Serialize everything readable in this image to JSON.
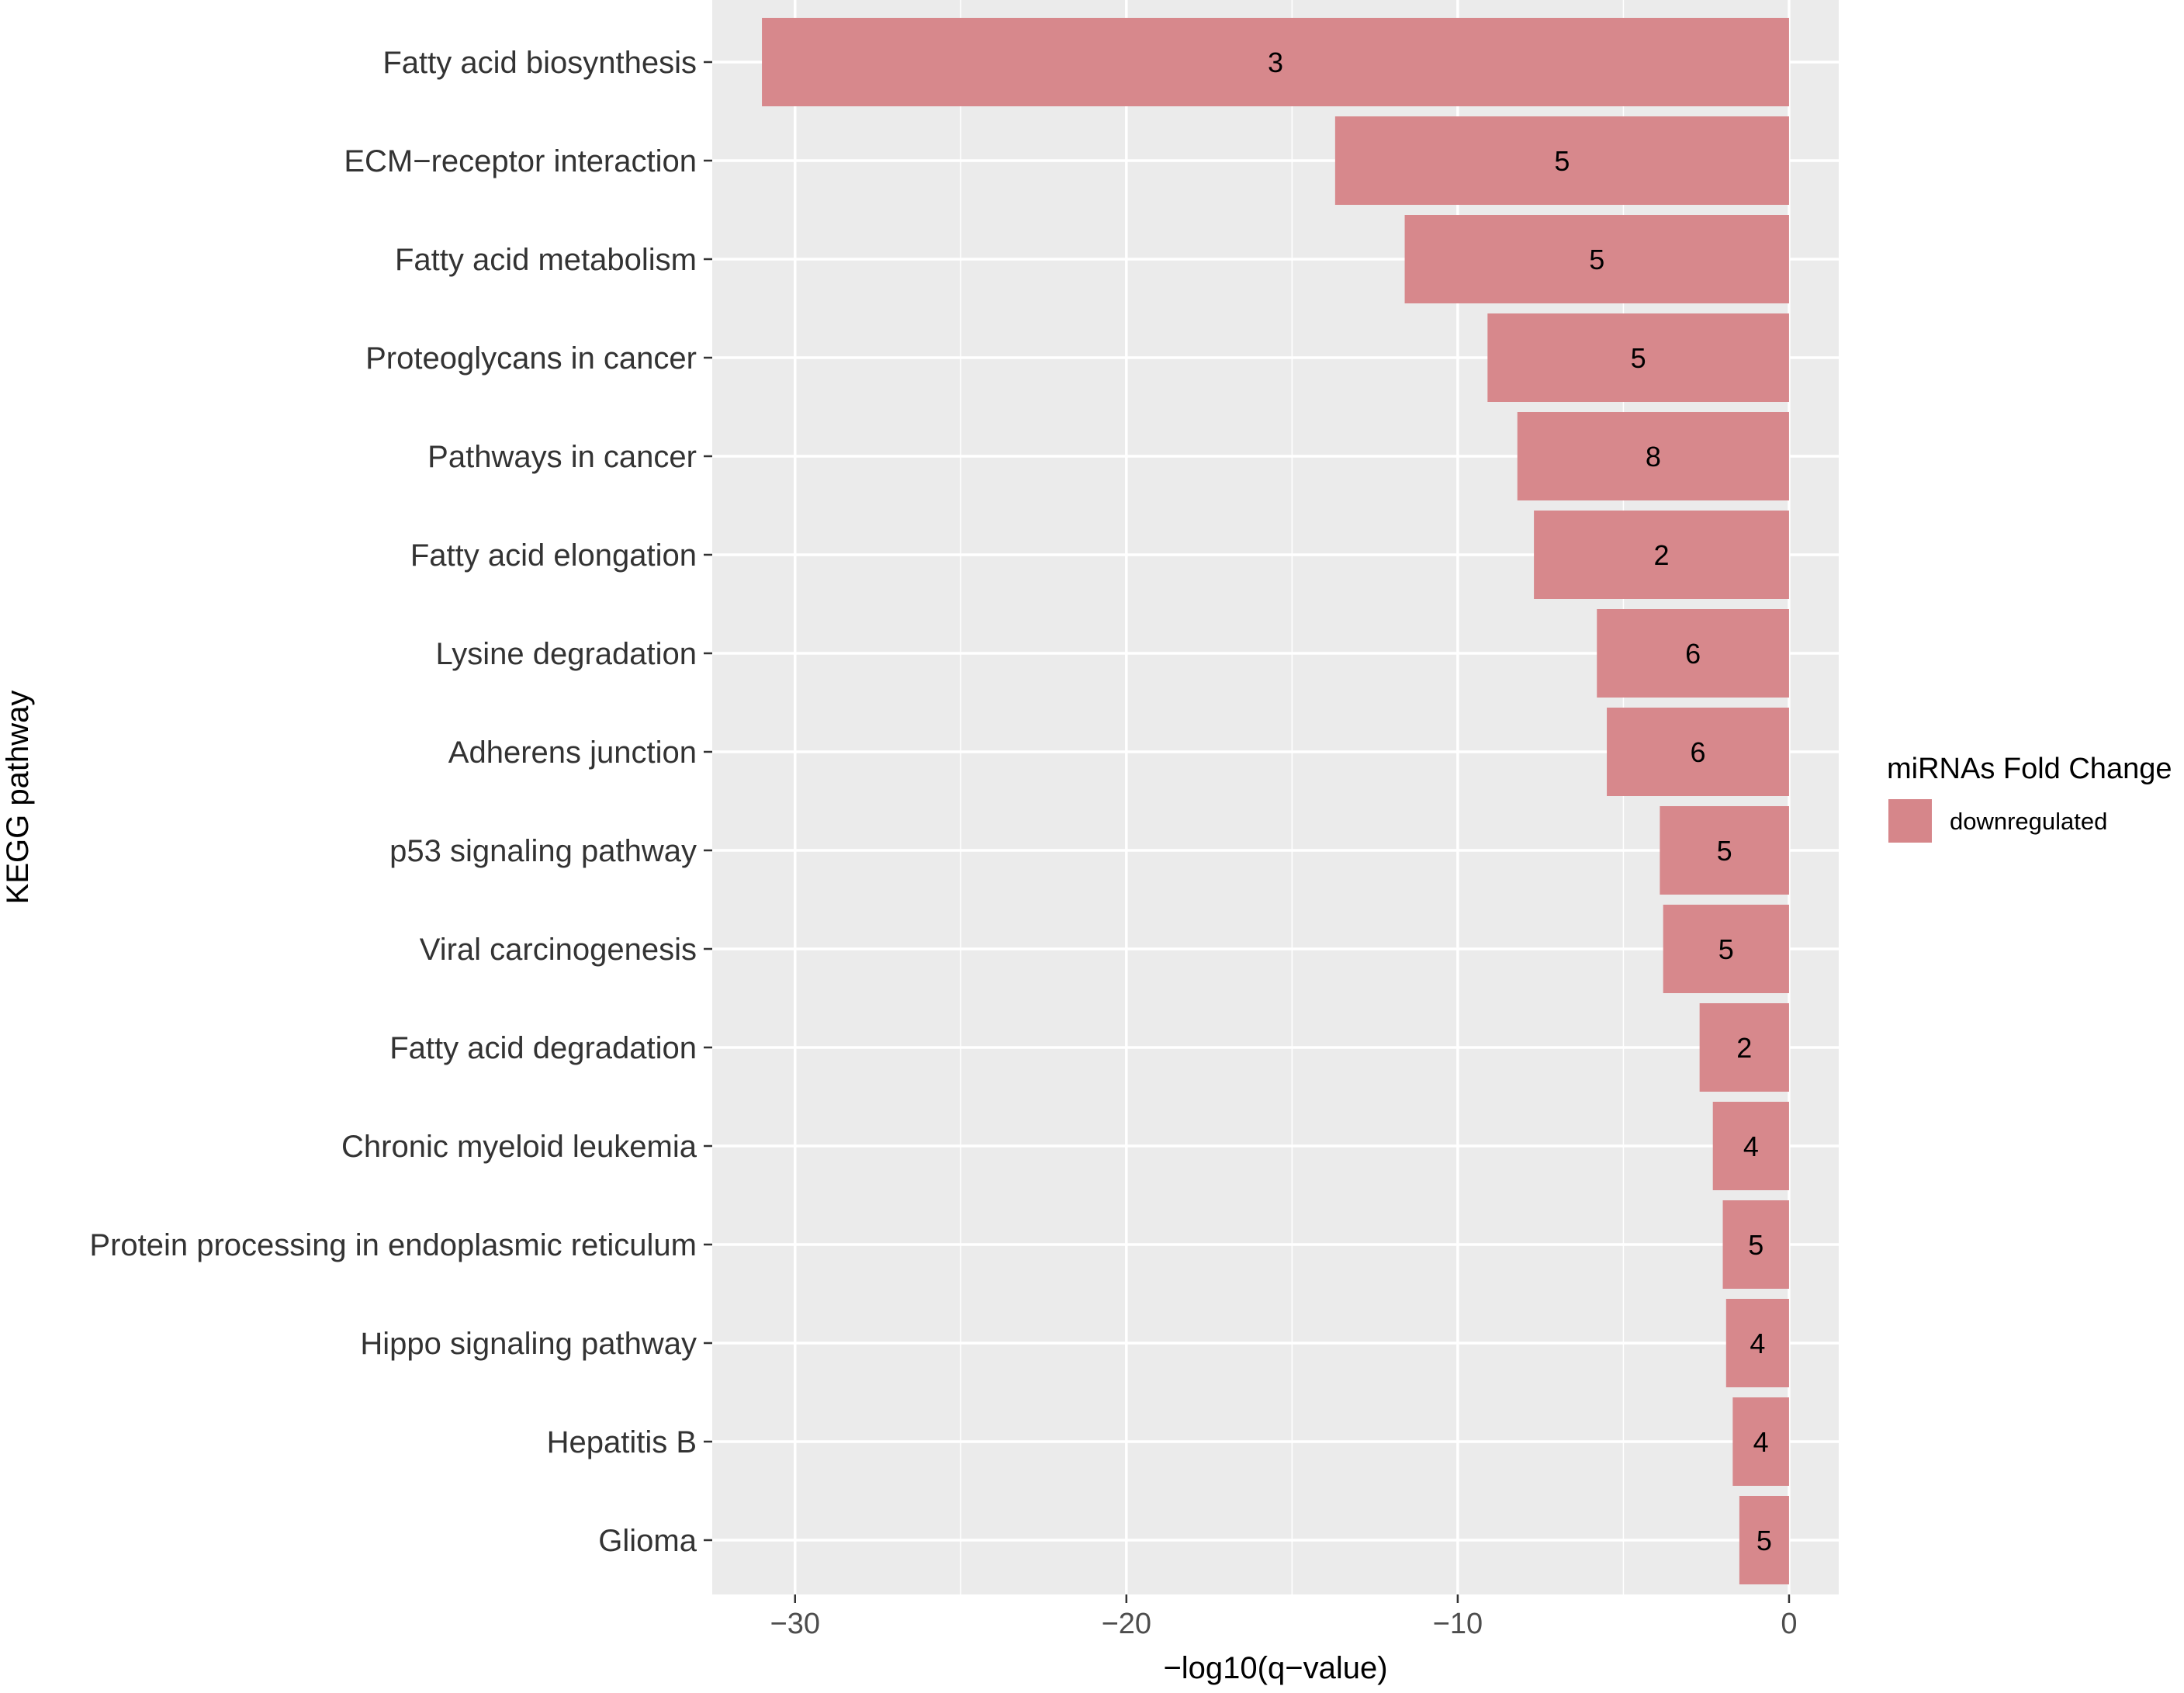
{
  "chart_data": {
    "type": "bar",
    "orientation": "horizontal",
    "title": "",
    "xlabel": "−log10(q−value)",
    "ylabel": "KEGG pathway",
    "xlim": [
      -32.5,
      1.5
    ],
    "xticks": [
      -30,
      -20,
      -10,
      0
    ],
    "xtick_labels": [
      "−30",
      "−20",
      "−10",
      "0"
    ],
    "grid": true,
    "categories": [
      "Fatty acid biosynthesis",
      "ECM−receptor interaction",
      "Fatty acid metabolism",
      "Proteoglycans in cancer",
      "Pathways in cancer",
      "Fatty acid elongation",
      "Lysine degradation",
      "Adherens junction",
      "p53 signaling pathway",
      "Viral carcinogenesis",
      "Fatty acid degradation",
      "Chronic myeloid leukemia",
      "Protein processing in endoplasmic reticulum",
      "Hippo signaling pathway",
      "Hepatitis B",
      "Glioma"
    ],
    "series": [
      {
        "name": "downregulated",
        "color": "#d6868a",
        "values": [
          -31.0,
          -13.7,
          -11.6,
          -9.1,
          -8.2,
          -7.7,
          -5.8,
          -5.5,
          -3.9,
          -3.8,
          -2.7,
          -2.3,
          -2.0,
          -1.9,
          -1.7,
          -1.5
        ],
        "labels": [
          "3",
          "5",
          "5",
          "5",
          "8",
          "2",
          "6",
          "6",
          "5",
          "5",
          "2",
          "4",
          "5",
          "4",
          "4",
          "5"
        ]
      }
    ],
    "legend": {
      "title": "miRNAs Fold Change",
      "position": "right",
      "entries": [
        "downregulated"
      ]
    }
  }
}
